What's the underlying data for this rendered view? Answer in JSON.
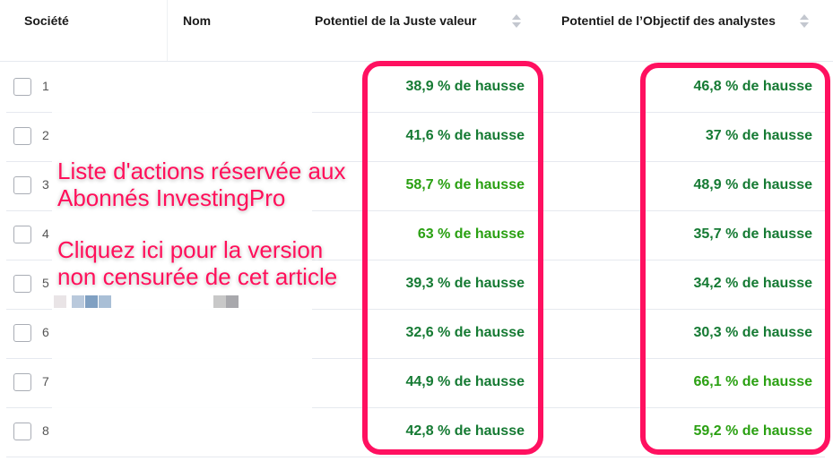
{
  "header": {
    "societe": "Société",
    "nom": "Nom",
    "fair_value": "Potentiel de la Juste valeur",
    "analyst": "Potentiel de l’Objectif des analystes"
  },
  "colors": {
    "dark_green": "#157a33",
    "light_green": "#2aa012",
    "highlight": "#ff1060"
  },
  "rows": [
    {
      "n": "1",
      "fv": "38,9 % de hausse",
      "fv_tone": "dark",
      "an": "46,8 % de hausse",
      "an_tone": "dark"
    },
    {
      "n": "2",
      "fv": "41,6 % de hausse",
      "fv_tone": "dark",
      "an": "37 % de hausse",
      "an_tone": "dark"
    },
    {
      "n": "3",
      "fv": "58,7 % de hausse",
      "fv_tone": "light",
      "an": "48,9 % de hausse",
      "an_tone": "dark"
    },
    {
      "n": "4",
      "fv": "63 % de hausse",
      "fv_tone": "light",
      "an": "35,7 % de hausse",
      "an_tone": "dark"
    },
    {
      "n": "5",
      "fv": "39,3 % de hausse",
      "fv_tone": "dark",
      "an": "34,2 % de hausse",
      "an_tone": "dark"
    },
    {
      "n": "6",
      "fv": "32,6 % de hausse",
      "fv_tone": "dark",
      "an": "30,3 % de hausse",
      "an_tone": "dark"
    },
    {
      "n": "7",
      "fv": "44,9 % de hausse",
      "fv_tone": "dark",
      "an": "66,1 % de hausse",
      "an_tone": "light"
    },
    {
      "n": "8",
      "fv": "42,8 % de hausse",
      "fv_tone": "dark",
      "an": "59,2 % de hausse",
      "an_tone": "light"
    }
  ],
  "promo": {
    "line1": "Liste d'actions réservée aux",
    "line2": "Abonnés InvestingPro",
    "line3": "Cliquez ici pour la version",
    "line4": "non censurée de cet article"
  }
}
